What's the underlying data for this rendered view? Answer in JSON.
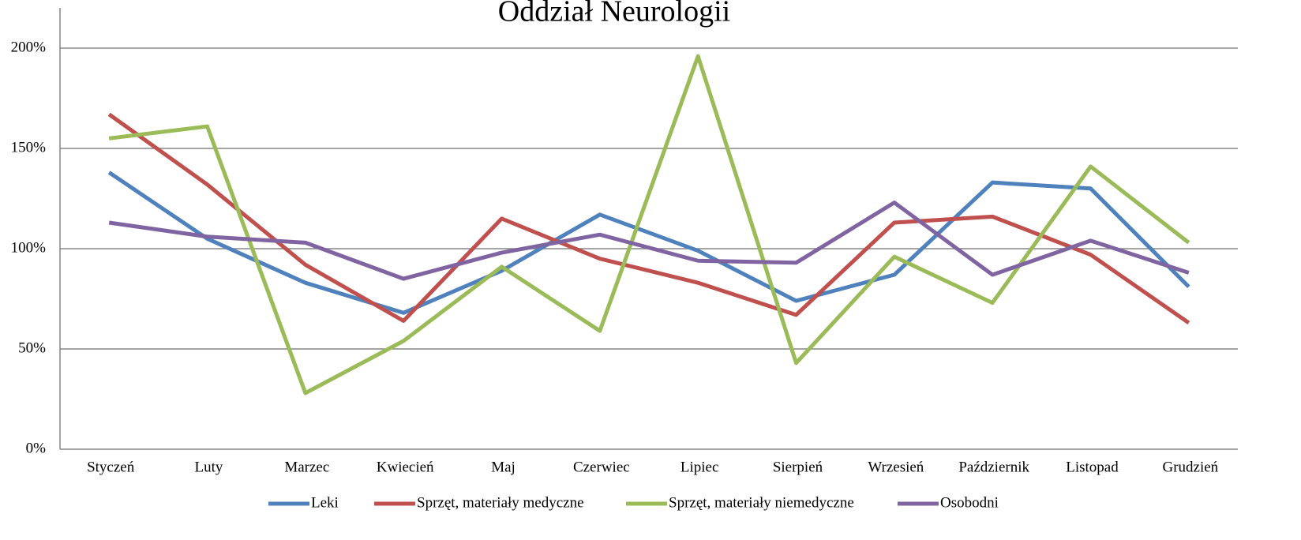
{
  "chart_data": {
    "type": "line",
    "title": "Oddział Neurologii",
    "categories": [
      "Styczeń",
      "Luty",
      "Marzec",
      "Kwiecień",
      "Maj",
      "Czerwiec",
      "Lipiec",
      "Sierpień",
      "Wrzesień",
      "Październik",
      "Listopad",
      "Grudzień"
    ],
    "series": [
      {
        "name": "Leki",
        "color": "#4f81bd",
        "values": [
          138,
          105,
          83,
          68,
          89,
          117,
          99,
          74,
          87,
          133,
          130,
          81
        ]
      },
      {
        "name": "Sprzęt, materiały medyczne",
        "color": "#c0504d",
        "values": [
          167,
          132,
          92,
          64,
          115,
          95,
          83,
          67,
          113,
          116,
          97,
          63
        ]
      },
      {
        "name": "Sprzęt, materiały niemedyczne",
        "color": "#9bbb59",
        "values": [
          155,
          161,
          28,
          54,
          91,
          59,
          196,
          43,
          96,
          73,
          141,
          103
        ]
      },
      {
        "name": "Osobodni",
        "color": "#8064a2",
        "values": [
          113,
          106,
          103,
          85,
          98,
          107,
          94,
          93,
          123,
          87,
          104,
          88
        ]
      }
    ],
    "ylim": [
      0,
      200
    ],
    "yticks": [
      {
        "value": 0,
        "label": "0%"
      },
      {
        "value": 50,
        "label": "50%"
      },
      {
        "value": 100,
        "label": "100%"
      },
      {
        "value": 150,
        "label": "150%"
      },
      {
        "value": 200,
        "label": "200%"
      }
    ],
    "grid": true,
    "legend": "bottom"
  }
}
